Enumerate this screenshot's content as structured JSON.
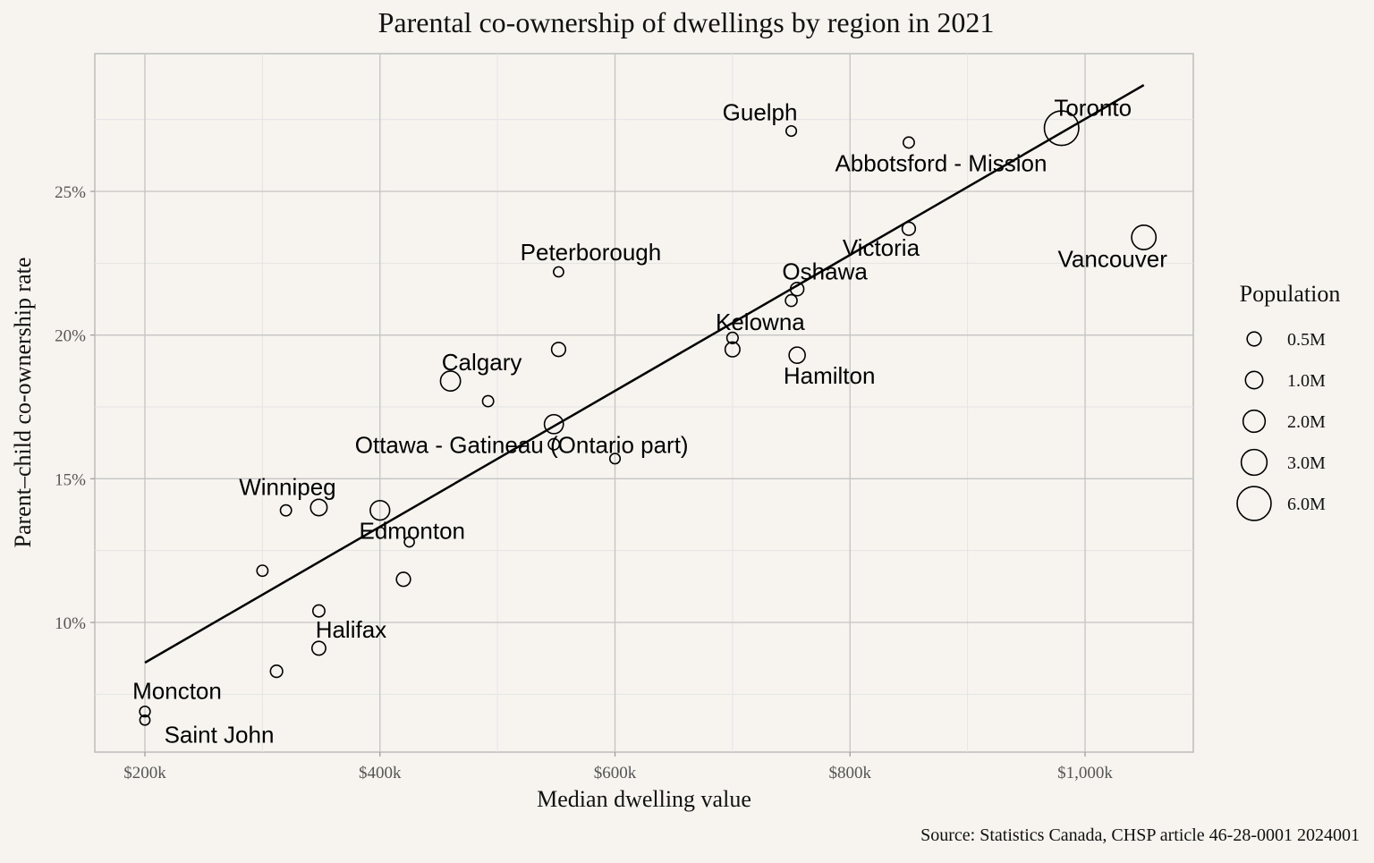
{
  "chart_data": {
    "type": "scatter",
    "title": "Parental co-ownership of dwellings by region in 2021",
    "xlabel": "Median dwelling value",
    "ylabel": "Parent–child co-ownership rate",
    "xlim": [
      190000,
      1070000
    ],
    "ylim": [
      0.06,
      0.29
    ],
    "x_ticks": [
      200000,
      400000,
      600000,
      800000,
      1000000
    ],
    "x_tick_labels": [
      "$200k",
      "$400k",
      "$600k",
      "$800k",
      "$1,000k"
    ],
    "y_ticks": [
      0.1,
      0.15,
      0.2,
      0.25
    ],
    "y_tick_labels": [
      "10%",
      "15%",
      "20%",
      "25%"
    ],
    "grid": true,
    "trend_line": {
      "x": [
        200000,
        1050000
      ],
      "y": [
        0.086,
        0.287
      ]
    },
    "points": [
      {
        "x": 980000,
        "y": 0.272,
        "pop": 6.2,
        "label": "Toronto"
      },
      {
        "x": 1050000,
        "y": 0.234,
        "pop": 2.6,
        "label": "Vancouver"
      },
      {
        "x": 750000,
        "y": 0.271,
        "pop": 0.15,
        "label": "Guelph"
      },
      {
        "x": 850000,
        "y": 0.267,
        "pop": 0.2,
        "label": "Abbotsford - Mission"
      },
      {
        "x": 850000,
        "y": 0.237,
        "pop": 0.4,
        "label": "Victoria"
      },
      {
        "x": 755000,
        "y": 0.216,
        "pop": 0.42,
        "label": "Oshawa"
      },
      {
        "x": 750000,
        "y": 0.212,
        "pop": 0.25,
        "label": ""
      },
      {
        "x": 552000,
        "y": 0.222,
        "pop": 0.13,
        "label": "Peterborough"
      },
      {
        "x": 700000,
        "y": 0.199,
        "pop": 0.22,
        "label": "Kelowna"
      },
      {
        "x": 700000,
        "y": 0.195,
        "pop": 0.6,
        "label": ""
      },
      {
        "x": 755000,
        "y": 0.193,
        "pop": 0.8,
        "label": "Hamilton"
      },
      {
        "x": 552000,
        "y": 0.195,
        "pop": 0.5,
        "label": ""
      },
      {
        "x": 460000,
        "y": 0.184,
        "pop": 1.5,
        "label": "Calgary"
      },
      {
        "x": 492000,
        "y": 0.177,
        "pop": 0.2,
        "label": ""
      },
      {
        "x": 548000,
        "y": 0.169,
        "pop": 1.3,
        "label": "Ottawa - Gatineau (Ontario part)"
      },
      {
        "x": 548000,
        "y": 0.162,
        "pop": 0.2,
        "label": ""
      },
      {
        "x": 600000,
        "y": 0.157,
        "pop": 0.15,
        "label": ""
      },
      {
        "x": 400000,
        "y": 0.139,
        "pop": 1.4,
        "label": "Edmonton"
      },
      {
        "x": 348000,
        "y": 0.14,
        "pop": 0.85,
        "label": "Winnipeg"
      },
      {
        "x": 320000,
        "y": 0.139,
        "pop": 0.2,
        "label": ""
      },
      {
        "x": 425000,
        "y": 0.128,
        "pop": 0.12,
        "label": ""
      },
      {
        "x": 420000,
        "y": 0.115,
        "pop": 0.5,
        "label": ""
      },
      {
        "x": 300000,
        "y": 0.118,
        "pop": 0.2,
        "label": ""
      },
      {
        "x": 348000,
        "y": 0.104,
        "pop": 0.28,
        "label": ""
      },
      {
        "x": 348000,
        "y": 0.091,
        "pop": 0.47,
        "label": "Halifax"
      },
      {
        "x": 312000,
        "y": 0.083,
        "pop": 0.3,
        "label": ""
      },
      {
        "x": 200000,
        "y": 0.069,
        "pop": 0.16,
        "label": "Moncton"
      },
      {
        "x": 200000,
        "y": 0.066,
        "pop": 0.13,
        "label": "Saint John"
      }
    ],
    "legend": {
      "title": "Population",
      "placement": "right",
      "items": [
        {
          "label": "0.5M",
          "pop": 0.5
        },
        {
          "label": "1.0M",
          "pop": 1.0
        },
        {
          "label": "2.0M",
          "pop": 2.0
        },
        {
          "label": "3.0M",
          "pop": 3.0
        },
        {
          "label": "6.0M",
          "pop": 6.0
        }
      ]
    },
    "source": "Source: Statistics Canada, CHSP article 46-28-0001 2024001"
  }
}
